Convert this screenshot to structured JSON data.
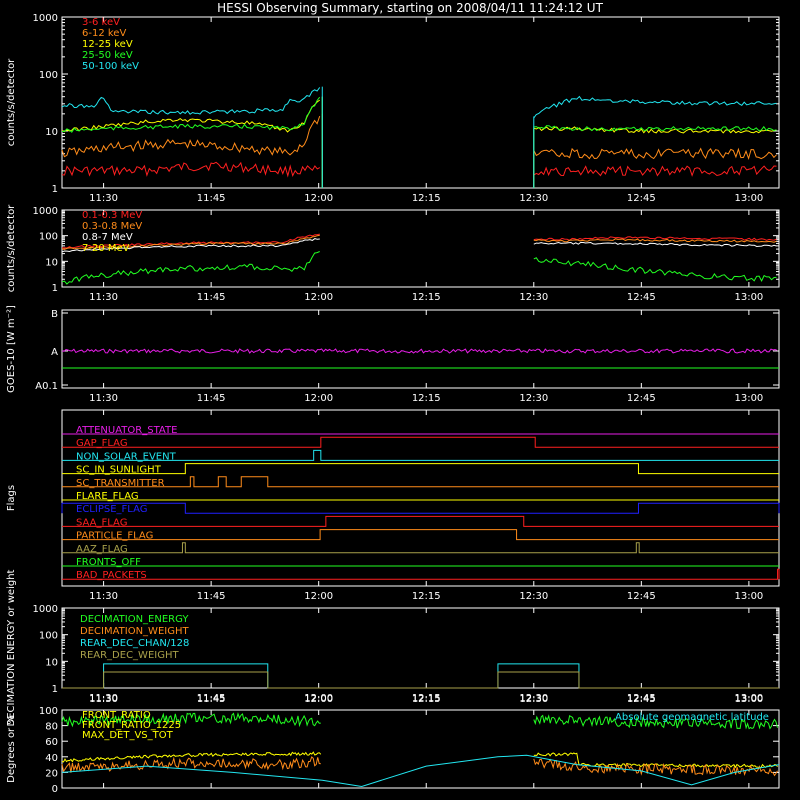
{
  "title": "HESSI Observing Summary, starting on 2008/04/11 11:24:12 UT",
  "time_axis": {
    "ticks": [
      "11:30",
      "11:45",
      "12:00",
      "12:15",
      "12:30",
      "12:45",
      "13:00"
    ],
    "tick_minutes": [
      30,
      45,
      60,
      75,
      90,
      105,
      120
    ],
    "range_minutes": [
      24.2,
      124.2
    ]
  },
  "colors": {
    "red": "#ff2020",
    "orange": "#ff8c1a",
    "yellow": "#ffff00",
    "green": "#22ff22",
    "cyan": "#22e6f0",
    "magenta": "#e61ee6",
    "blue": "#2020ff",
    "olive": "#a8a04a",
    "white": "#ffffff"
  },
  "chart_data": [
    {
      "type": "line",
      "panel": "low-energy",
      "ylabel": "counts/s/detector",
      "scale": "log",
      "ylim": [
        1,
        1000
      ],
      "yticks": [
        "1",
        "10",
        "100",
        "1000"
      ],
      "legend": [
        "3-6 keV",
        "6-12 keV",
        "12-25 keV",
        "25-50 keV",
        "50-100 keV"
      ],
      "gap_minutes": [
        60.5,
        90.0
      ],
      "series": [
        {
          "name": "3-6 keV",
          "x": [
            24.2,
            35,
            45,
            55,
            60.5,
            90,
            100,
            110,
            124.2
          ],
          "values": [
            2,
            2,
            2.5,
            2,
            2,
            2,
            2,
            2,
            2
          ]
        },
        {
          "name": "6-12 keV",
          "x": [
            24.2,
            30,
            40,
            50,
            56,
            58,
            60.5,
            90,
            95,
            105,
            115,
            124.2
          ],
          "values": [
            4,
            5,
            6,
            5,
            4,
            6,
            20,
            4,
            4,
            4,
            4,
            4
          ]
        },
        {
          "name": "12-25 keV",
          "x": [
            24.2,
            30,
            40,
            50,
            56,
            58,
            60.5,
            90,
            95,
            105,
            115,
            124.2
          ],
          "values": [
            10,
            12,
            16,
            14,
            10,
            14,
            40,
            11,
            11,
            10,
            10,
            10
          ]
        },
        {
          "name": "25-50 keV",
          "x": [
            24.2,
            30,
            40,
            50,
            56,
            58,
            60.5,
            90,
            95,
            105,
            115,
            124.2
          ],
          "values": [
            10,
            11,
            12,
            12,
            11,
            14,
            40,
            12,
            11,
            11,
            11,
            11
          ]
        },
        {
          "name": "50-100 keV",
          "x": [
            24.2,
            29,
            30,
            31,
            40,
            50,
            55,
            56,
            58,
            60.5,
            90,
            96,
            100,
            110,
            124.2
          ],
          "values": [
            28,
            28,
            40,
            22,
            21,
            22,
            24,
            35,
            35,
            60,
            18,
            38,
            34,
            31,
            30
          ]
        }
      ]
    },
    {
      "type": "line",
      "panel": "high-energy",
      "ylabel": "counts/s/detector",
      "scale": "log",
      "ylim": [
        1,
        1000
      ],
      "yticks": [
        "1",
        "10",
        "100",
        "1000"
      ],
      "legend": [
        "0.1-0.3 MeV",
        "0.3-0.8 MeV",
        "0.8-7 MeV",
        "7-20 MeV"
      ],
      "gap_minutes": [
        60.5,
        90.0
      ],
      "series": [
        {
          "name": "0.1-0.3 MeV",
          "x": [
            24.2,
            35,
            45,
            55,
            60.5,
            90,
            95,
            100,
            110,
            124.2
          ],
          "values": [
            35,
            45,
            55,
            55,
            120,
            75,
            72,
            85,
            80,
            70
          ]
        },
        {
          "name": "0.3-0.8 MeV",
          "x": [
            24.2,
            35,
            45,
            55,
            60.5,
            90,
            95,
            100,
            110,
            124.2
          ],
          "values": [
            30,
            40,
            50,
            48,
            100,
            65,
            62,
            70,
            65,
            58
          ]
        },
        {
          "name": "0.8-7 MeV",
          "x": [
            24.2,
            35,
            45,
            55,
            60.5,
            90,
            100,
            110,
            124.2
          ],
          "values": [
            25,
            35,
            40,
            40,
            80,
            50,
            50,
            45,
            40
          ]
        },
        {
          "name": "7-20 MeV",
          "x": [
            24.2,
            30,
            40,
            50,
            58,
            60.5,
            90,
            100,
            110,
            124.2
          ],
          "values": [
            1.5,
            3,
            5,
            6,
            5,
            25,
            12,
            6,
            3,
            2
          ]
        }
      ]
    },
    {
      "type": "line",
      "panel": "goes",
      "ylabel": "GOES-10 [W m⁻²]",
      "yticks": [
        "A0.1",
        "A",
        "B"
      ],
      "series": [
        {
          "name": "GOES-10",
          "x": [
            24.2,
            30,
            36,
            37,
            124.2
          ],
          "values": [
            "A",
            "A",
            "A",
            "A",
            "A"
          ]
        }
      ]
    },
    {
      "type": "line",
      "panel": "flags",
      "ylabel": "Flags",
      "flags": [
        {
          "name": "ATTENUATOR_STATE",
          "color": "#e61ee6",
          "on": []
        },
        {
          "name": "GAP_FLAG",
          "color": "#ff2020",
          "on": [
            [
              60.3,
              90.2
            ]
          ]
        },
        {
          "name": "NON_SOLAR_EVENT",
          "color": "#22e6f0",
          "on": [
            [
              59.3,
              60.3
            ]
          ]
        },
        {
          "name": "SC_IN_SUNLIGHT",
          "color": "#ffff00",
          "on": [
            [
              41.4,
              104.6
            ]
          ]
        },
        {
          "name": "SC_TRANSMITTER",
          "color": "#ff8c1a",
          "on": [
            [
              42.1,
              42.6
            ],
            [
              46.0,
              47.1
            ],
            [
              49.2,
              52.9
            ]
          ]
        },
        {
          "name": "FLARE_FLAG",
          "color": "#ffff00",
          "on": []
        },
        {
          "name": "ECLIPSE_FLAG",
          "color": "#2020ff",
          "on": [
            [
              24.2,
              41.4
            ],
            [
              104.6,
              124.2
            ]
          ]
        },
        {
          "name": "SAA_FLAG",
          "color": "#ff2020",
          "on": [
            [
              61.0,
              88.6
            ]
          ]
        },
        {
          "name": "PARTICLE_FLAG",
          "color": "#ff8c1a",
          "on": [
            [
              60.2,
              87.6
            ]
          ]
        },
        {
          "name": "AAZ_FLAG",
          "color": "#a8a04a",
          "on": [
            [
              41.0,
              41.4
            ],
            [
              104.3,
              104.7
            ]
          ]
        },
        {
          "name": "FRONTS_OFF",
          "color": "#22ff22",
          "on": []
        },
        {
          "name": "BAD_PACKETS",
          "color": "#ff2020",
          "on": [
            [
              124.0,
              124.2
            ]
          ]
        }
      ]
    },
    {
      "type": "line",
      "panel": "decimation",
      "ylabel": "DECIMATION ENERGY or weight",
      "scale": "log",
      "ylim": [
        1,
        1000
      ],
      "yticks": [
        "1",
        "10",
        "100",
        "1000"
      ],
      "legend": [
        "DECIMATION_ENERGY",
        "DECIMATION_WEIGHT",
        "REAR_DEC_CHAN/128",
        "REAR_DEC_WEIGHT"
      ],
      "series": [
        {
          "name": "REAR_DEC_CHAN/128",
          "steps": [
            [
              24.2,
              30,
              1
            ],
            [
              30,
              52.9,
              8
            ],
            [
              52.9,
              85,
              1
            ],
            [
              85,
              96.3,
              8
            ],
            [
              96.3,
              124.2,
              1
            ]
          ]
        },
        {
          "name": "REAR_DEC_WEIGHT",
          "steps": [
            [
              24.2,
              30,
              1
            ],
            [
              30,
              52.9,
              4
            ],
            [
              52.9,
              85,
              1
            ],
            [
              85,
              96.3,
              4
            ],
            [
              96.3,
              124.2,
              1
            ]
          ]
        }
      ]
    },
    {
      "type": "line",
      "panel": "geo",
      "ylabel": "Degrees or %",
      "ylim": [
        0,
        100
      ],
      "yticks": [
        "0",
        "20",
        "40",
        "60",
        "80",
        "100"
      ],
      "legend": [
        "FRONT_RATIO",
        "FRONT_RATIO_1225",
        "MAX_DET_VS_TOT",
        "Absolute geomagnetic latitude"
      ],
      "series": [
        {
          "name": "FRONT_RATIO",
          "x": [
            24.2,
            35,
            45,
            55,
            60.5,
            90,
            100,
            110,
            124.2
          ],
          "values": [
            85,
            88,
            90,
            88,
            85,
            88,
            85,
            83,
            82
          ]
        },
        {
          "name": "FRONT_RATIO_1225",
          "x": [
            24.2,
            40,
            58,
            60.5,
            90,
            96,
            96.3,
            124.2
          ],
          "values": [
            35,
            42,
            44,
            44,
            43,
            43,
            30,
            28
          ]
        },
        {
          "name": "MAX_DET_VS_TOT",
          "x": [
            24.2,
            35,
            45,
            55,
            60.5,
            90,
            100,
            110,
            124.2
          ],
          "values": [
            25,
            30,
            33,
            30,
            35,
            32,
            25,
            24,
            22
          ]
        },
        {
          "name": "Absolute geomagnetic latitude",
          "x": [
            24.2,
            36,
            48,
            60.5,
            66,
            75,
            85,
            89,
            96,
            105,
            112,
            118,
            124.2
          ],
          "values": [
            20,
            28,
            20,
            10,
            2,
            28,
            40,
            42,
            30,
            22,
            4,
            20,
            30
          ]
        }
      ]
    }
  ]
}
